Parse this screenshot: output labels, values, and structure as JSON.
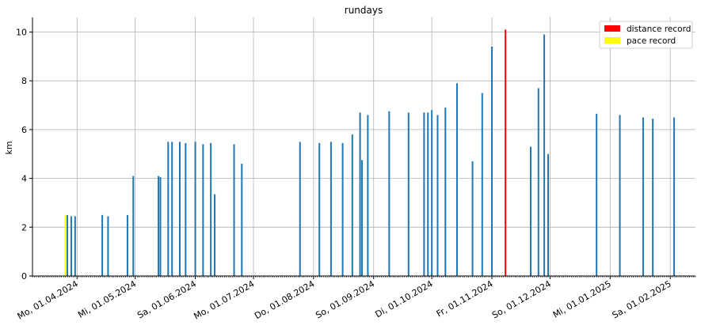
{
  "chart_data": {
    "type": "bar",
    "title": "rundays",
    "xlabel": "",
    "ylabel": "km",
    "ylim": [
      0,
      10.6
    ],
    "xlim": [
      "2024-03-09",
      "2025-02-14"
    ],
    "grid": true,
    "legend_position": "top-right",
    "x_tick_dates": [
      "2024-04-01",
      "2024-05-01",
      "2024-06-01",
      "2024-07-01",
      "2024-08-01",
      "2024-09-01",
      "2024-10-01",
      "2024-11-01",
      "2024-12-01",
      "2025-01-01",
      "2025-02-01"
    ],
    "x_tick_labels": [
      "Mo, 01.04.2024",
      "Mi, 01.05.2024",
      "Sa, 01.06.2024",
      "Mo, 01.07.2024",
      "Do, 01.08.2024",
      "So, 01.09.2024",
      "Di, 01.10.2024",
      "Fr, 01.11.2024",
      "So, 01.12.2024",
      "Mi, 01.01.2025",
      "Sa, 01.02.2025"
    ],
    "y_ticks": [
      0,
      2,
      4,
      6,
      8,
      10
    ],
    "y_tick_labels": [
      "0",
      "2",
      "4",
      "6",
      "8",
      "10"
    ],
    "colors": {
      "default": "#1f77b4",
      "distance_record": "#ff0000",
      "pace_record": "#ffff00"
    },
    "legend": [
      {
        "label": "distance record",
        "color": "#ff0000"
      },
      {
        "label": "pace record",
        "color": "#ffff00"
      }
    ],
    "series": [
      {
        "x": [
          "2024-03-26",
          "2024-03-27",
          "2024-03-29",
          "2024-03-31",
          "2024-04-14",
          "2024-04-17",
          "2024-04-27",
          "2024-04-30",
          "2024-05-13",
          "2024-05-14",
          "2024-05-18",
          "2024-05-20",
          "2024-05-24",
          "2024-05-27",
          "2024-06-01",
          "2024-06-05",
          "2024-06-09",
          "2024-06-11",
          "2024-06-21",
          "2024-06-25",
          "2024-07-25",
          "2024-08-04",
          "2024-08-10",
          "2024-08-16",
          "2024-08-21",
          "2024-08-25",
          "2024-08-26",
          "2024-08-29",
          "2024-09-09",
          "2024-09-19",
          "2024-09-27",
          "2024-09-29",
          "2024-10-01",
          "2024-10-04",
          "2024-10-08",
          "2024-10-14",
          "2024-10-22",
          "2024-10-27",
          "2024-11-01",
          "2024-11-08",
          "2024-11-21",
          "2024-11-25",
          "2024-11-28",
          "2024-11-30",
          "2024-12-25",
          "2025-01-06",
          "2025-01-18",
          "2025-01-23",
          "2025-02-03"
        ],
        "values": [
          2.5,
          2.5,
          2.45,
          2.45,
          2.5,
          2.45,
          2.5,
          4.1,
          4.1,
          4.05,
          5.5,
          5.5,
          5.5,
          5.45,
          5.5,
          5.4,
          5.45,
          3.35,
          5.4,
          4.6,
          5.5,
          5.45,
          5.5,
          5.45,
          5.8,
          6.7,
          4.75,
          6.6,
          6.75,
          6.7,
          6.7,
          6.7,
          6.8,
          6.6,
          6.9,
          7.9,
          4.7,
          7.5,
          9.4,
          10.1,
          5.3,
          7.7,
          9.9,
          5.0,
          6.65,
          6.6,
          6.5,
          6.45,
          6.5
        ],
        "highlight": [
          "pace_record",
          "none",
          "none",
          "none",
          "none",
          "none",
          "none",
          "none",
          "none",
          "none",
          "none",
          "none",
          "none",
          "none",
          "none",
          "none",
          "none",
          "none",
          "none",
          "none",
          "none",
          "none",
          "none",
          "none",
          "none",
          "none",
          "none",
          "none",
          "none",
          "none",
          "none",
          "none",
          "none",
          "none",
          "none",
          "none",
          "none",
          "none",
          "none",
          "distance_record",
          "none",
          "none",
          "none",
          "none",
          "none",
          "none",
          "none",
          "none",
          "none"
        ]
      }
    ]
  }
}
